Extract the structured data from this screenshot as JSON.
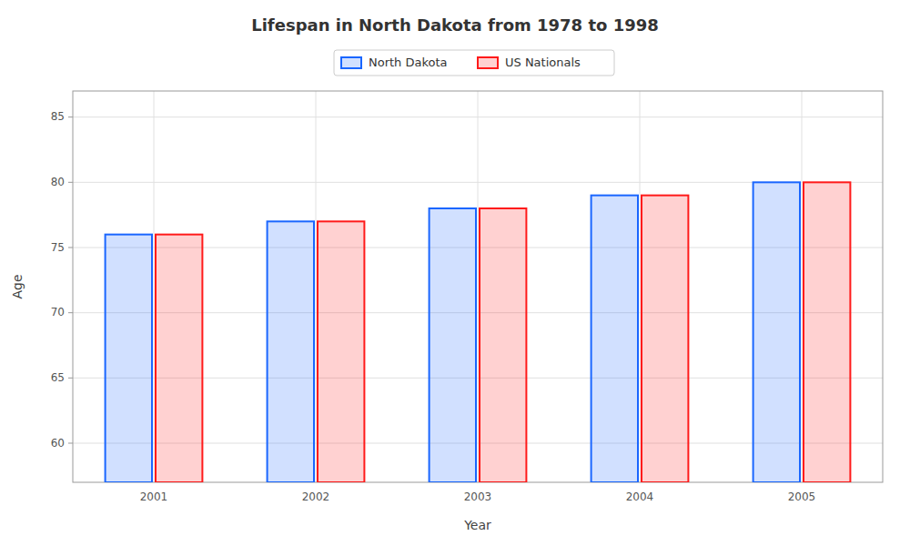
{
  "chart_data": {
    "type": "bar",
    "title": "Lifespan in North Dakota from 1978 to 1998",
    "xlabel": "Year",
    "ylabel": "Age",
    "categories": [
      "2001",
      "2002",
      "2003",
      "2004",
      "2005"
    ],
    "series": [
      {
        "name": "North Dakota",
        "color": "#1a66ff",
        "values": [
          76,
          77,
          78,
          79,
          80
        ]
      },
      {
        "name": "US Nationals",
        "color": "#ff1a1a",
        "values": [
          76,
          77,
          78,
          79,
          80
        ]
      }
    ],
    "ylim": [
      57,
      87
    ],
    "yticks": [
      60,
      65,
      70,
      75,
      80,
      85
    ],
    "grid": true,
    "legend": "top"
  }
}
